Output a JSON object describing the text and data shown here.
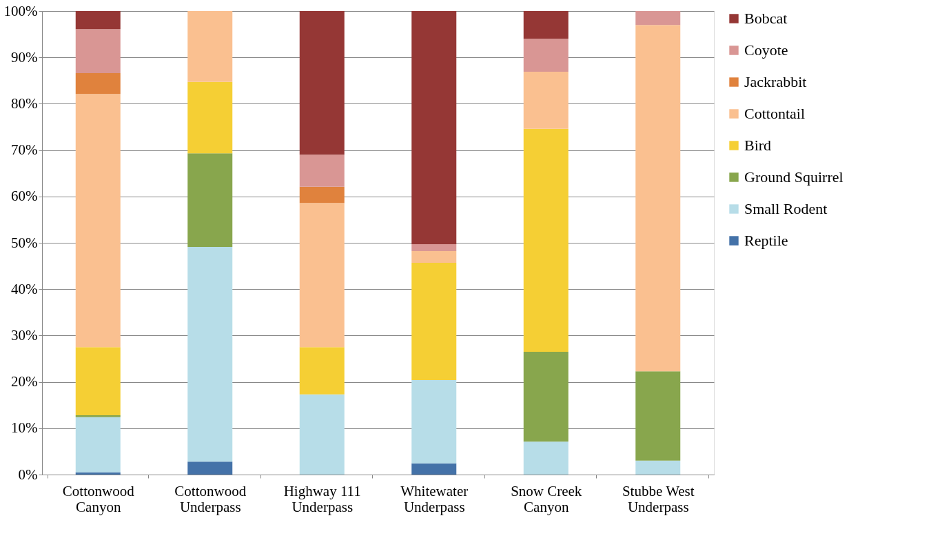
{
  "chart_data": {
    "type": "bar",
    "stacked": true,
    "categories": [
      "Cottonwood\nCanyon",
      "Cottonwood\nUnderpass",
      "Highway 111\nUnderpass",
      "Whitewater\nUnderpass",
      "Snow Creek\nCanyon",
      "Stubbe West\nUnderpass"
    ],
    "series": [
      {
        "name": "Reptile",
        "color": "#4472a8",
        "values": [
          0.5,
          2.8,
          null,
          2.4,
          null,
          null
        ]
      },
      {
        "name": "Small Rodent",
        "color": "#b7dde8",
        "values": [
          11.9,
          46.3,
          17.3,
          18.0,
          7.1,
          3.0
        ]
      },
      {
        "name": "Ground Squirrel",
        "color": "#88a64d",
        "values": [
          0.4,
          20.2,
          null,
          null,
          19.4,
          19.3
        ]
      },
      {
        "name": "Bird",
        "color": "#f5cf34",
        "values": [
          14.7,
          15.4,
          10.2,
          25.3,
          48.1,
          null
        ]
      },
      {
        "name": "Cottontail",
        "color": "#fac090",
        "values": [
          54.6,
          15.3,
          31.1,
          2.5,
          12.3,
          74.7
        ]
      },
      {
        "name": "Jackrabbit",
        "color": "#e0823d",
        "values": [
          4.5,
          null,
          3.5,
          null,
          null,
          null
        ]
      },
      {
        "name": "Coyote",
        "color": "#d99694",
        "values": [
          9.5,
          null,
          6.9,
          1.5,
          7.1,
          3.0
        ]
      },
      {
        "name": "Bobcat",
        "color": "#953735",
        "values": [
          3.9,
          null,
          31.0,
          50.3,
          6.0,
          null
        ]
      }
    ],
    "ylim": [
      0,
      100
    ],
    "yticks": [
      {
        "value": 0,
        "label": "0%"
      },
      {
        "value": 10,
        "label": "10%"
      },
      {
        "value": 20,
        "label": "20%"
      },
      {
        "value": 30,
        "label": "30%"
      },
      {
        "value": 40,
        "label": "40%"
      },
      {
        "value": 50,
        "label": "50%"
      },
      {
        "value": 60,
        "label": "60%"
      },
      {
        "value": 70,
        "label": "70%"
      },
      {
        "value": 80,
        "label": "80%"
      },
      {
        "value": 90,
        "label": "90%"
      },
      {
        "value": 100,
        "label": "100%"
      }
    ],
    "grid": "y",
    "legend": "right"
  }
}
